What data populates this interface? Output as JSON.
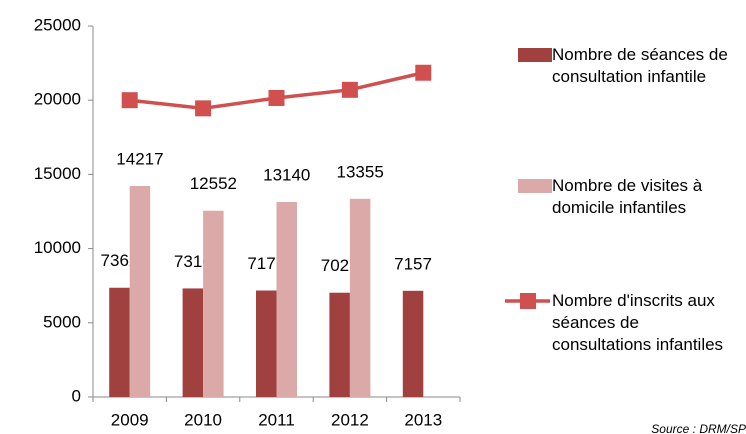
{
  "chart_data": {
    "type": "bar",
    "categories": [
      "2009",
      "2010",
      "2011",
      "2012",
      "2013"
    ],
    "series": [
      {
        "name": "Nombre de séances de consultation infantile",
        "color": "#a0403f",
        "values": [
          7362,
          7316,
          7176,
          7028,
          7157
        ]
      },
      {
        "name": "Nombre de visites à domicile infantiles",
        "color": "#dba9a8",
        "values": [
          14217,
          12552,
          13140,
          13355,
          null
        ]
      },
      {
        "name": "Nombre d'inscrits aux séances de consultations infantiles",
        "type": "line",
        "color": "#d0504f",
        "values": [
          20000,
          19450,
          20150,
          20700,
          21850
        ]
      }
    ],
    "ylim": [
      0,
      25000
    ],
    "yticks": [
      0,
      5000,
      10000,
      15000,
      20000,
      25000
    ],
    "data_labels": true,
    "legend": "right",
    "source": "Source : DRM/SP"
  }
}
